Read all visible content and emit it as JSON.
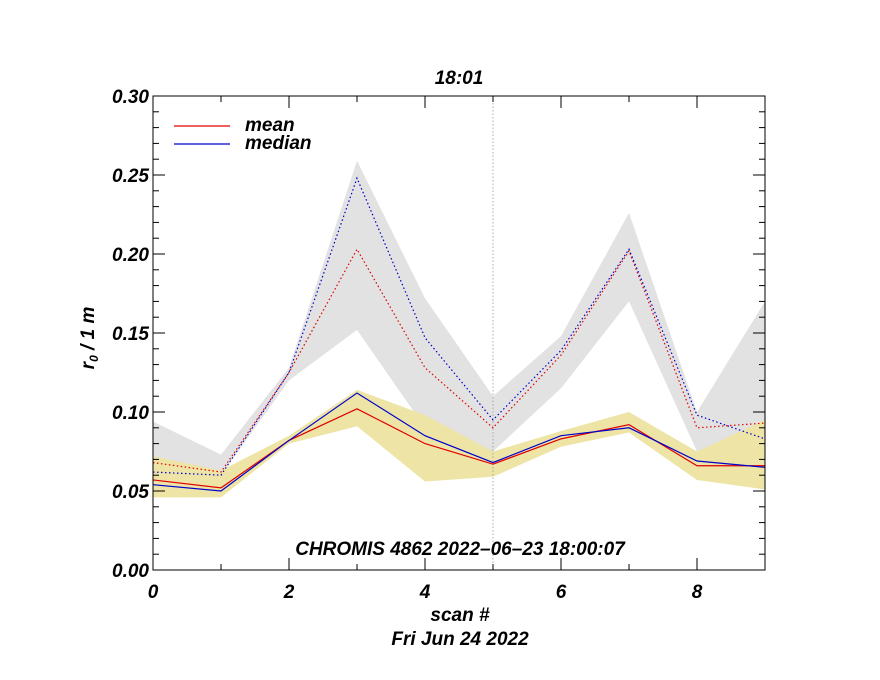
{
  "chart_data": {
    "type": "line",
    "title": "18:01",
    "xlabel": "scan #",
    "ylabel_main": "r",
    "ylabel_sub": "0",
    "ylabel_rest": " / 1 m",
    "footer": "Fri Jun 24 2022",
    "annotation": "CHROMIS 4862 2022–06–23 18:00:07",
    "xlim": [
      0,
      9
    ],
    "ylim": [
      0,
      0.3
    ],
    "x_ticks": [
      0,
      2,
      4,
      6,
      8
    ],
    "x_tick_labels": [
      "0",
      "2",
      "4",
      "6",
      "8"
    ],
    "y_ticks": [
      0,
      0.05,
      0.1,
      0.15,
      0.2,
      0.25,
      0.3
    ],
    "y_tick_labels": [
      "0.00",
      "0.05",
      "0.10",
      "0.15",
      "0.20",
      "0.25",
      "0.30"
    ],
    "vline_x": 5,
    "x": [
      0,
      1,
      2,
      3,
      4,
      5,
      6,
      7,
      8,
      9
    ],
    "legend": [
      {
        "label": "mean",
        "color": "#e00000"
      },
      {
        "label": "median",
        "color": "#0000cc"
      }
    ],
    "bands": [
      {
        "name": "upper-band",
        "color": "#e2e2e2",
        "upper": [
          0.094,
          0.073,
          0.128,
          0.259,
          0.172,
          0.11,
          0.148,
          0.226,
          0.1,
          0.17
        ],
        "lower": [
          0.062,
          0.06,
          0.12,
          0.152,
          0.09,
          0.075,
          0.115,
          0.17,
          0.075,
          0.082
        ]
      },
      {
        "name": "lower-band",
        "color": "#ede4a6",
        "upper": [
          0.072,
          0.063,
          0.085,
          0.114,
          0.098,
          0.075,
          0.088,
          0.1,
          0.075,
          0.095
        ],
        "lower": [
          0.046,
          0.046,
          0.08,
          0.091,
          0.056,
          0.059,
          0.078,
          0.087,
          0.057,
          0.051
        ]
      }
    ],
    "series": [
      {
        "name": "mean",
        "style": "solid",
        "color": "#e00000",
        "values": [
          0.057,
          0.052,
          0.082,
          0.102,
          0.08,
          0.067,
          0.083,
          0.092,
          0.066,
          0.066
        ]
      },
      {
        "name": "median",
        "style": "solid",
        "color": "#0000cc",
        "values": [
          0.054,
          0.05,
          0.082,
          0.112,
          0.085,
          0.068,
          0.085,
          0.09,
          0.069,
          0.065
        ]
      },
      {
        "name": "mean-upper",
        "style": "dotted",
        "color": "#e00000",
        "values": [
          0.068,
          0.062,
          0.125,
          0.203,
          0.128,
          0.09,
          0.136,
          0.202,
          0.09,
          0.093
        ]
      },
      {
        "name": "median-upper",
        "style": "dotted",
        "color": "#0000cc",
        "values": [
          0.062,
          0.06,
          0.125,
          0.248,
          0.147,
          0.095,
          0.139,
          0.203,
          0.098,
          0.083
        ]
      }
    ]
  }
}
